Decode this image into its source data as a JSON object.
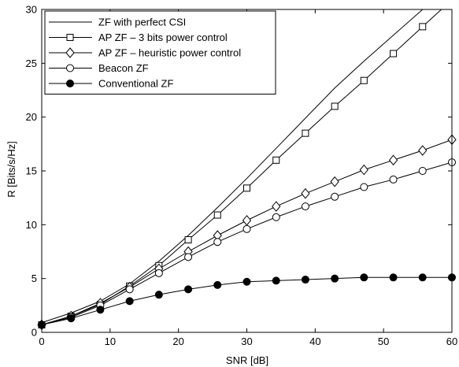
{
  "chart_data": {
    "type": "line",
    "xlabel": "SNR [dB]",
    "ylabel": "R [Bits/s/Hz]",
    "xlim": [
      0,
      60
    ],
    "ylim": [
      0,
      30
    ],
    "xticks": [
      0,
      10,
      20,
      30,
      40,
      50,
      60
    ],
    "yticks": [
      0,
      5,
      10,
      15,
      20,
      25,
      30
    ],
    "grid": "off",
    "legend_position": "top-left",
    "series": [
      {
        "name": "ZF with perfect CSI",
        "marker": "none",
        "x": [
          0,
          4.29,
          8.57,
          12.86,
          17.14,
          21.43,
          25.71,
          30,
          34.29,
          38.57,
          42.86,
          47.14,
          51.43,
          55.71,
          60
        ],
        "values": [
          0.9,
          1.8,
          2.9,
          4.5,
          6.6,
          9.0,
          11.6,
          14.3,
          17.1,
          19.9,
          22.7,
          25.2,
          27.6,
          30.0,
          32.4
        ]
      },
      {
        "name": "AP ZF – 3 bits power control",
        "marker": "square",
        "x": [
          0,
          4.29,
          8.57,
          12.86,
          17.14,
          21.43,
          25.71,
          30,
          34.29,
          38.57,
          42.86,
          47.14,
          51.43,
          55.71,
          60
        ],
        "values": [
          0.7,
          1.5,
          2.6,
          4.3,
          6.2,
          8.6,
          10.9,
          13.4,
          16.0,
          18.5,
          21.0,
          23.4,
          25.9,
          28.4,
          30.9
        ]
      },
      {
        "name": "AP ZF – heuristic power control",
        "marker": "diamond",
        "x": [
          0,
          4.29,
          8.57,
          12.86,
          17.14,
          21.43,
          25.71,
          30,
          34.29,
          38.57,
          42.86,
          47.14,
          51.43,
          55.71,
          60
        ],
        "values": [
          0.7,
          1.5,
          2.7,
          4.2,
          5.9,
          7.5,
          9.0,
          10.4,
          11.7,
          12.9,
          14.0,
          15.1,
          16.0,
          16.9,
          17.9
        ]
      },
      {
        "name": "Beacon ZF",
        "marker": "circle",
        "x": [
          0,
          4.29,
          8.57,
          12.86,
          17.14,
          21.43,
          25.71,
          30,
          34.29,
          38.57,
          42.86,
          47.14,
          51.43,
          55.71,
          60
        ],
        "values": [
          0.7,
          1.4,
          2.5,
          4.0,
          5.5,
          7.0,
          8.4,
          9.6,
          10.7,
          11.7,
          12.6,
          13.5,
          14.2,
          15.0,
          15.8
        ]
      },
      {
        "name": "Conventional ZF",
        "marker": "filled-circle",
        "x": [
          0,
          4.29,
          8.57,
          12.86,
          17.14,
          21.43,
          25.71,
          30,
          34.29,
          38.57,
          42.86,
          47.14,
          51.43,
          55.71,
          60
        ],
        "values": [
          0.7,
          1.3,
          2.1,
          2.9,
          3.5,
          4.0,
          4.4,
          4.7,
          4.8,
          4.9,
          5.0,
          5.1,
          5.1,
          5.1,
          5.1
        ]
      }
    ]
  }
}
